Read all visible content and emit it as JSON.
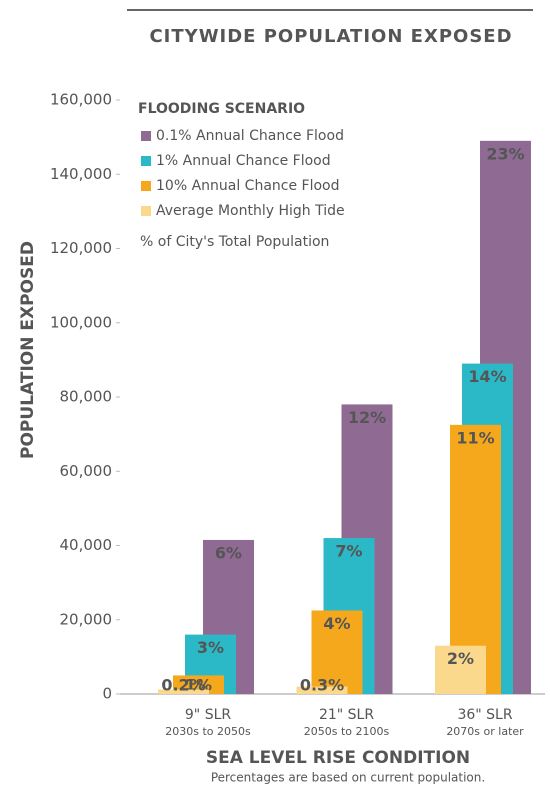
{
  "chart_data": {
    "type": "bar",
    "title": "CITYWIDE POPULATION EXPOSED",
    "y_label": "POPULATION EXPOSED",
    "x_label": "SEA LEVEL RISE CONDITION",
    "note": "Percentages are based on current population.",
    "legend_title": "FLOODING SCENARIO",
    "legend_extra": "% of City's Total Population",
    "categories": [
      "9\" SLR",
      "21\" SLR",
      "36\" SLR"
    ],
    "category_subtitles": [
      "2030s to 2050s",
      "2050s to 2100s",
      "2070s or later"
    ],
    "series": [
      {
        "name": "0.1% Annual Chance Flood",
        "color": "#8f6b94",
        "values": [
          41500,
          78000,
          149000
        ],
        "percent_labels": [
          "6%",
          "12%",
          "23%"
        ]
      },
      {
        "name": "1% Annual Chance Flood",
        "color": "#2cb9c7",
        "values": [
          16000,
          42000,
          89000
        ],
        "percent_labels": [
          "3%",
          "7%",
          "14%"
        ]
      },
      {
        "name": "10% Annual Chance Flood",
        "color": "#f6a81d",
        "values": [
          5000,
          22500,
          72500
        ],
        "percent_labels": [
          "1%",
          "4%",
          "11%"
        ]
      },
      {
        "name": "Average Monthly High Tide",
        "color": "#fbd98c",
        "values": [
          1200,
          2000,
          13000
        ],
        "percent_labels": [
          "0.2%",
          "0.3%",
          "2%"
        ]
      }
    ],
    "ylim": [
      0,
      160000
    ],
    "yticks": [
      0,
      {
        "value": 20000,
        "label": "20,000"
      },
      {
        "value": 40000,
        "label": "40,000"
      },
      {
        "value": 60000,
        "label": "60,000"
      },
      {
        "value": 80000,
        "label": "80,000"
      },
      {
        "value": 100000,
        "label": "100,000"
      },
      {
        "value": 120000,
        "label": "120,000"
      },
      {
        "value": 140000,
        "label": "140,000"
      },
      {
        "value": 160000,
        "label": "160,000"
      }
    ],
    "grid": false
  }
}
